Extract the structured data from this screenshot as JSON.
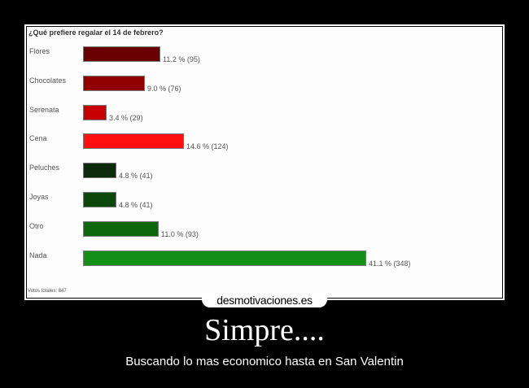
{
  "poll": {
    "title": "¿Qué prefiere regalar el 14 de febrero?",
    "options": [
      {
        "label": "Flores",
        "percent": 11.2,
        "votes": 95,
        "value_text": "11.2 % (95)",
        "color": "#6b0000"
      },
      {
        "label": "Chocolates",
        "percent": 9.0,
        "votes": 76,
        "value_text": "9.0 % (76)",
        "color": "#900000"
      },
      {
        "label": "Serenata",
        "percent": 3.4,
        "votes": 29,
        "value_text": "3.4 % (29)",
        "color": "#c80000"
      },
      {
        "label": "Cena",
        "percent": 14.6,
        "votes": 124,
        "value_text": "14.6 % (124)",
        "color": "#ff1010"
      },
      {
        "label": "Peluches",
        "percent": 4.8,
        "votes": 41,
        "value_text": "4.8 % (41)",
        "color": "#0c2a0c"
      },
      {
        "label": "Joyas",
        "percent": 4.8,
        "votes": 41,
        "value_text": "4.8 % (41)",
        "color": "#0c480c"
      },
      {
        "label": "Otro",
        "percent": 11.0,
        "votes": 93,
        "value_text": "11.0 % (93)",
        "color": "#0c680c"
      },
      {
        "label": "Nada",
        "percent": 41.1,
        "votes": 348,
        "value_text": "41.1 % (348)",
        "color": "#129018"
      }
    ],
    "total_text": "Votos totales: 847"
  },
  "watermark": "desmotivaciones.es",
  "headline": "Simpre....",
  "subtitle": "Buscando lo mas economico hasta en San Valentin"
}
